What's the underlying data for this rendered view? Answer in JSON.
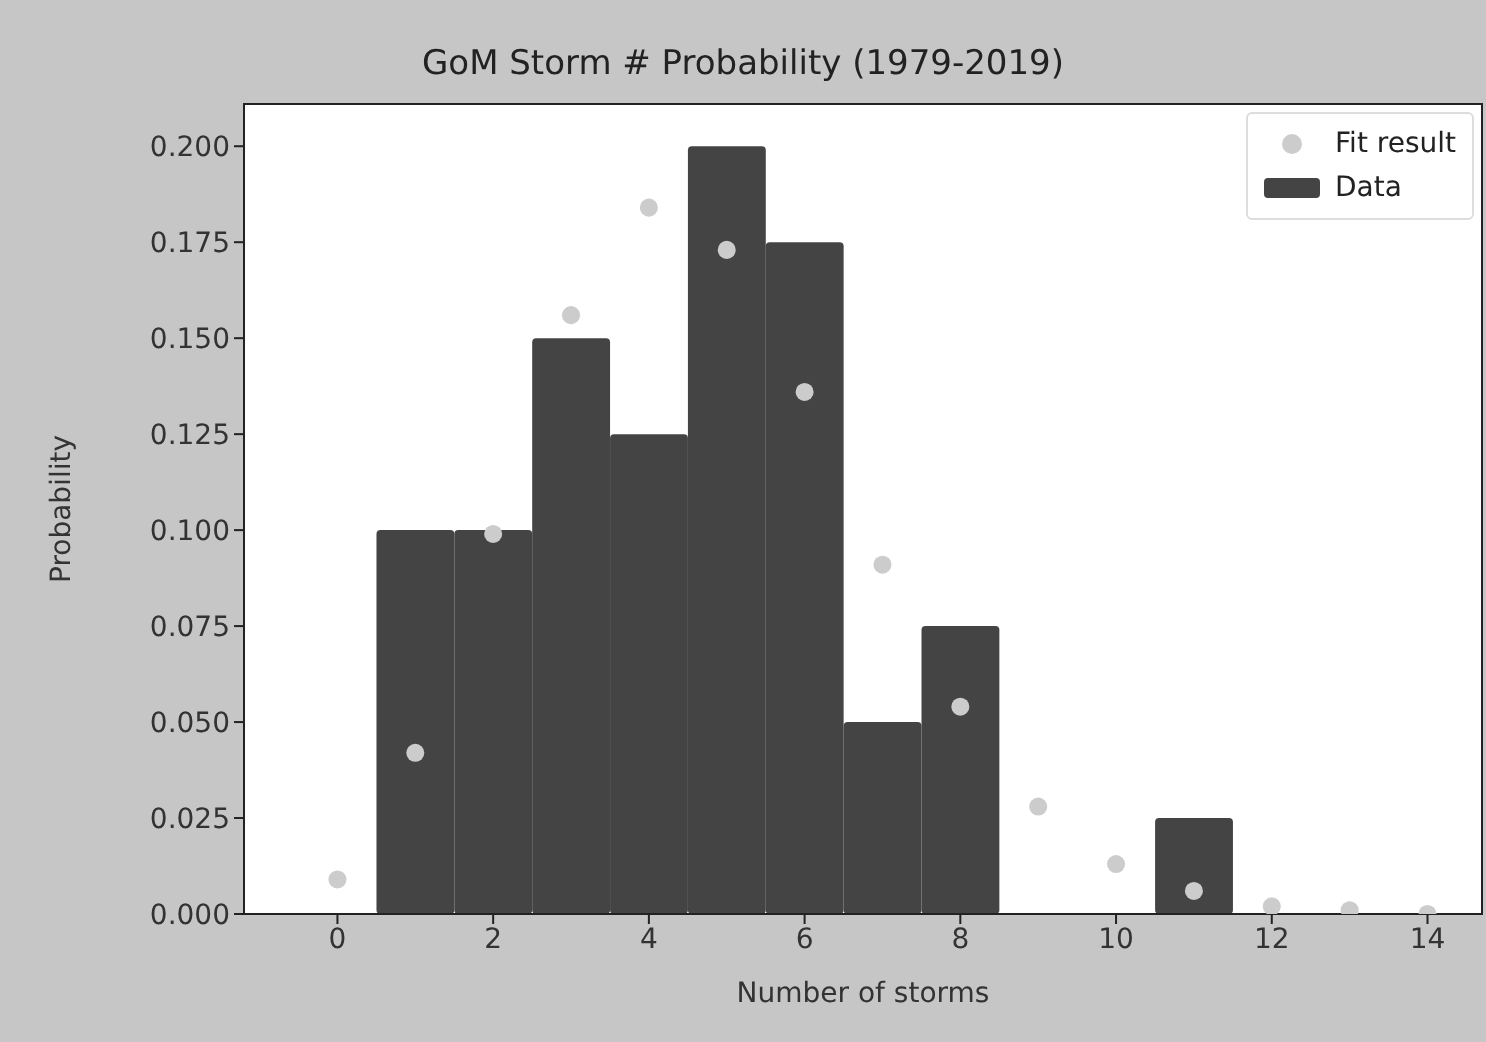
{
  "chart_data": {
    "type": "histogram",
    "title": "GoM Storm # Probability (1979-2019)",
    "xlabel": "Number of storms",
    "ylabel": "Probability",
    "xlim": [
      -1.2,
      14.7
    ],
    "xticks": [
      0,
      2,
      4,
      6,
      8,
      10,
      12,
      14
    ],
    "ylim": [
      0,
      0.211
    ],
    "yticks": [
      {
        "value": 0,
        "label": "0.000"
      },
      {
        "value": 0.025,
        "label": "0.025"
      },
      {
        "value": 0.05,
        "label": "0.050"
      },
      {
        "value": 0.075,
        "label": "0.075"
      },
      {
        "value": 0.1,
        "label": "0.100"
      },
      {
        "value": 0.125,
        "label": "0.125"
      },
      {
        "value": 0.15,
        "label": "0.150"
      },
      {
        "value": 0.175,
        "label": "0.175"
      },
      {
        "value": 0.2,
        "label": "0.200"
      }
    ],
    "grid": false,
    "legend": "top right",
    "marker": "circle",
    "series": [
      {
        "name": "Fit result",
        "type": "scatter",
        "color": "#cccccc",
        "x": [
          0,
          1,
          2,
          3,
          4,
          5,
          6,
          7,
          8,
          9,
          10,
          11,
          12,
          13,
          14
        ],
        "values": [
          0.009,
          0.042,
          0.099,
          0.156,
          0.184,
          0.173,
          0.136,
          0.091,
          0.054,
          0.028,
          0.013,
          0.006,
          0.002,
          0.001,
          0.0
        ]
      },
      {
        "name": "Data",
        "color": "#444444",
        "bins": [
          0.5,
          1.5,
          2.5,
          3.5,
          4.5,
          5.5,
          6.5,
          7.5,
          8.5,
          9.5,
          10.5,
          11.5
        ],
        "values": [
          0.1,
          0.1,
          0.15,
          0.125,
          0.2,
          0.175,
          0.05,
          0.075,
          0,
          0,
          0.025
        ]
      }
    ]
  }
}
